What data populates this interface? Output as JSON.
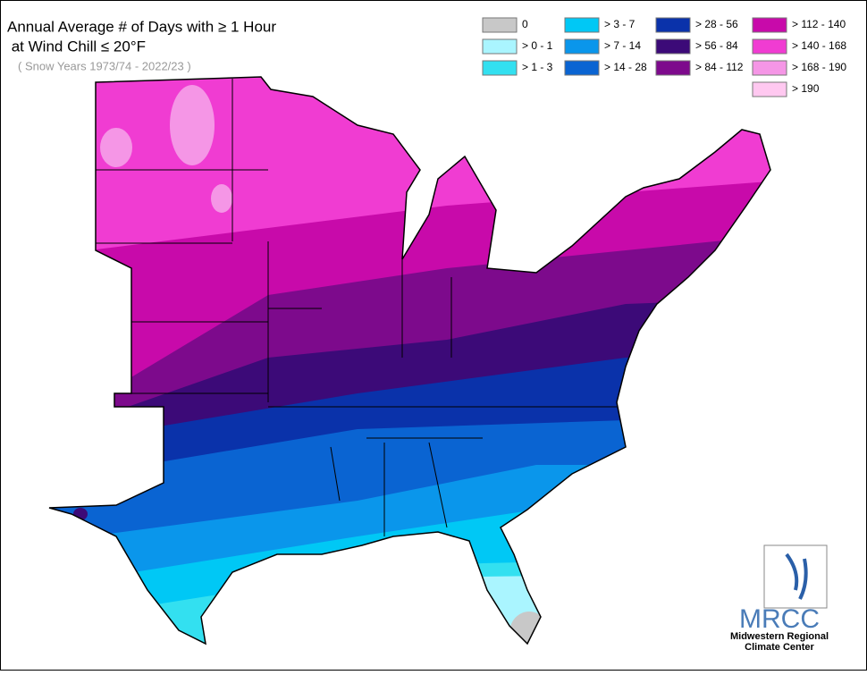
{
  "header": {
    "title_line1": "Annual Average # of Days with ≥ 1 Hour",
    "title_line2": " at Wind Chill ≤ 20°F",
    "subtitle": "( Snow Years 1973/74 - 2022/23 )"
  },
  "legend": {
    "items": [
      {
        "label": "0",
        "color": "#c8c8c8"
      },
      {
        "label": "> 0 - 1",
        "color": "#aaf5ff"
      },
      {
        "label": "> 1 - 3",
        "color": "#33e0f0"
      },
      {
        "label": "> 3 - 7",
        "color": "#00c8f5"
      },
      {
        "label": "> 7 - 14",
        "color": "#0a96eb"
      },
      {
        "label": "> 14 - 28",
        "color": "#0a64d2"
      },
      {
        "label": "> 28 - 56",
        "color": "#0a32aa"
      },
      {
        "label": "> 56 - 84",
        "color": "#3c0a78"
      },
      {
        "label": "> 84 - 112",
        "color": "#7d0a8c"
      },
      {
        "label": "> 112 - 140",
        "color": "#c80aaa"
      },
      {
        "label": "> 140 - 168",
        "color": "#f03cd2"
      },
      {
        "label": "> 168 - 190",
        "color": "#f596e6"
      },
      {
        "label": "> 190",
        "color": "#ffc8f0"
      }
    ]
  },
  "logo": {
    "acronym": "MRCC",
    "name_line1": "Midwestern Regional",
    "name_line2": "Climate Center"
  }
}
